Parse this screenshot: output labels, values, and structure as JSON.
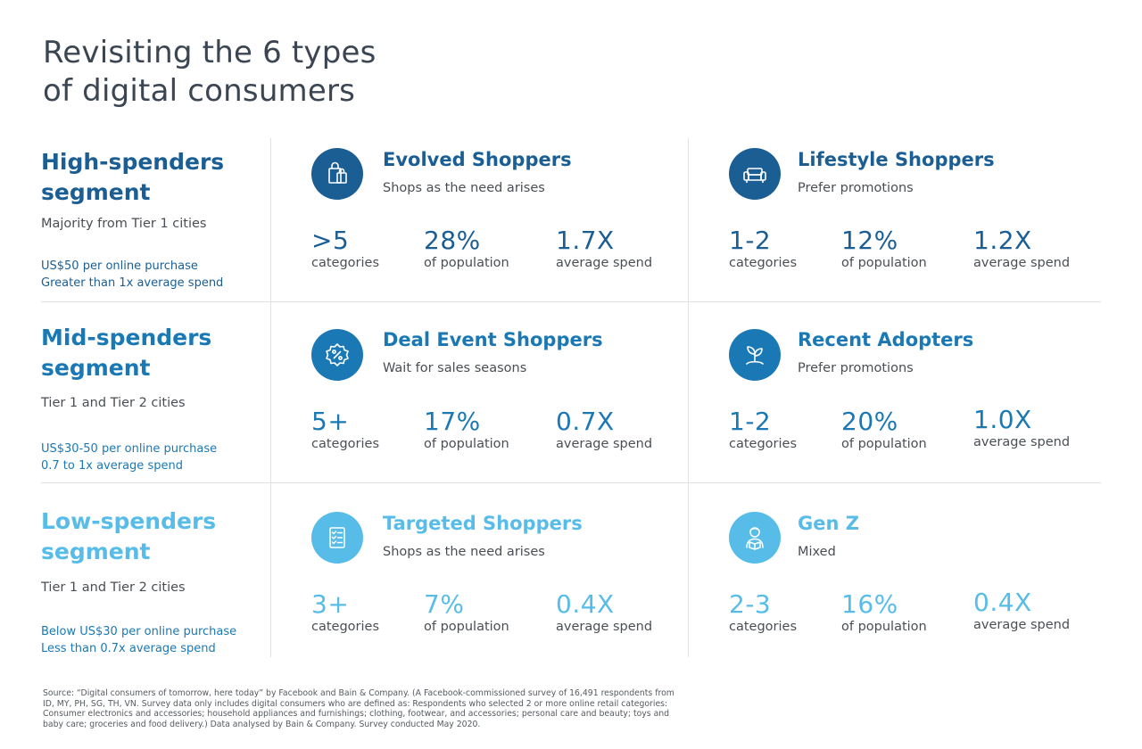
{
  "title": {
    "line1": "Revisiting the 6 types",
    "line2": "of digital consumers"
  },
  "colors": {
    "high": "#1b5e94",
    "mid": "#1a79b5",
    "low": "#57bde8",
    "text": "#444b52",
    "divider": "#dfe3e7"
  },
  "segments": [
    {
      "title_line1": "High-spenders",
      "title_line2": "segment",
      "cities": "Majority from Tier 1 cities",
      "detail_line1": "US$50 per online purchase",
      "detail_line2": "Greater than 1x average spend",
      "types": [
        {
          "icon": "shopping-bag-icon",
          "name": "Evolved Shoppers",
          "subtitle": "Shops as the need arises",
          "stats": [
            {
              "value": ">5",
              "label": "categories"
            },
            {
              "value": "28%",
              "label": "of population"
            },
            {
              "value": "1.7X",
              "label": "average spend"
            }
          ]
        },
        {
          "icon": "sofa-icon",
          "name": "Lifestyle Shoppers",
          "subtitle": "Prefer promotions",
          "stats": [
            {
              "value": "1-2",
              "label": "categories"
            },
            {
              "value": "12%",
              "label": "of population"
            },
            {
              "value": "1.2X",
              "label": "average spend"
            }
          ]
        }
      ]
    },
    {
      "title_line1": "Mid-spenders",
      "title_line2": "segment",
      "cities": "Tier 1 and Tier 2 cities",
      "detail_line1": "US$30-50 per online purchase",
      "detail_line2": "0.7 to 1x average spend",
      "types": [
        {
          "icon": "discount-badge-icon",
          "name": "Deal Event Shoppers",
          "subtitle": "Wait for sales seasons",
          "stats": [
            {
              "value": "5+",
              "label": "categories"
            },
            {
              "value": "17%",
              "label": "of population"
            },
            {
              "value": "0.7X",
              "label": "average spend"
            }
          ]
        },
        {
          "icon": "sprout-icon",
          "name": "Recent Adopters",
          "subtitle": "Prefer promotions",
          "stats": [
            {
              "value": "1-2",
              "label": "categories"
            },
            {
              "value": "20%",
              "label": "of population"
            },
            {
              "value": "1.0X",
              "label": "average spend"
            }
          ]
        }
      ]
    },
    {
      "title_line1": "Low-spenders",
      "title_line2": "segment",
      "cities": "Tier 1 and Tier 2 cities",
      "detail_line1": "Below US$30 per online purchase",
      "detail_line2": "Less than 0.7x average spend",
      "types": [
        {
          "icon": "checklist-icon",
          "name": "Targeted Shoppers",
          "subtitle": "Shops as the need arises",
          "stats": [
            {
              "value": "3+",
              "label": "categories"
            },
            {
              "value": "7%",
              "label": "of population"
            },
            {
              "value": "0.4X",
              "label": "average spend"
            }
          ]
        },
        {
          "icon": "reading-person-icon",
          "name": "Gen Z",
          "subtitle": "Mixed",
          "stats": [
            {
              "value": "2-3",
              "label": "categories"
            },
            {
              "value": "16%",
              "label": "of population"
            },
            {
              "value": "0.4X",
              "label": "average spend"
            }
          ]
        }
      ]
    }
  ],
  "footnote": "Source: “Digital consumers of tomorrow, here today” by Facebook and Bain & Company. (A Facebook-commissioned survey of 16,491 respondents from ID, MY, PH, SG, TH, VN. Survey data only includes digital consumers who are defined as: Respondents who selected 2 or more online retail categories: Consumer electronics and accessories; household appliances and furnishings; clothing, footwear, and accessories; personal care and beauty; toys and baby care; groceries and food delivery.) Data analysed by Bain & Company. Survey conducted May 2020.",
  "chart_data": {
    "type": "table",
    "title": "Revisiting the 6 types of digital consumers",
    "columns": [
      "segment",
      "consumer_type",
      "subtitle",
      "categories",
      "population_pct",
      "average_spend_x"
    ],
    "rows": [
      [
        "High-spenders",
        "Evolved Shoppers",
        "Shops as the need arises",
        ">5",
        28,
        1.7
      ],
      [
        "High-spenders",
        "Lifestyle Shoppers",
        "Prefer promotions",
        "1-2",
        12,
        1.2
      ],
      [
        "Mid-spenders",
        "Deal Event Shoppers",
        "Wait for sales seasons",
        "5+",
        17,
        0.7
      ],
      [
        "Mid-spenders",
        "Recent Adopters",
        "Prefer promotions",
        "1-2",
        20,
        1.0
      ],
      [
        "Low-spenders",
        "Targeted Shoppers",
        "Shops as the need arises",
        "3+",
        7,
        0.4
      ],
      [
        "Low-spenders",
        "Gen Z",
        "Mixed",
        "2-3",
        16,
        0.4
      ]
    ]
  }
}
